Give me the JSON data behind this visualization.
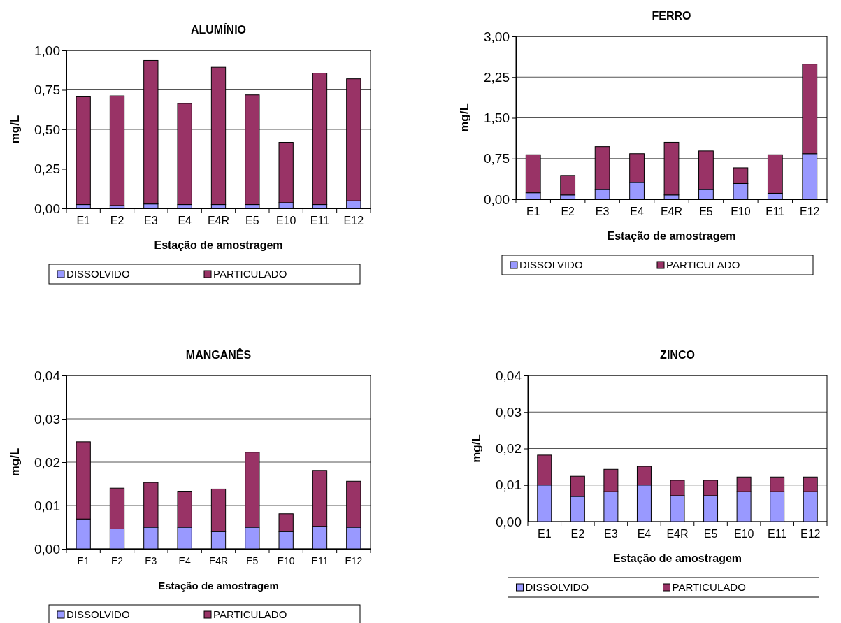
{
  "chart_data": [
    {
      "type": "bar",
      "title": "ALUMÍNIO",
      "xlabel": "Estação de amostragem",
      "ylabel": "mg/L",
      "categories": [
        "E1",
        "E2",
        "E3",
        "E4",
        "E4R",
        "E5",
        "E10",
        "E11",
        "E12"
      ],
      "stacked": true,
      "grid": "y",
      "legend": "bottom",
      "ylim": [
        0,
        1
      ],
      "yticks": [
        {
          "value": 0,
          "label": "0,00"
        },
        {
          "value": 0.25,
          "label": "0,25"
        },
        {
          "value": 0.5,
          "label": "0,50"
        },
        {
          "value": 0.75,
          "label": "0,75"
        },
        {
          "value": 1,
          "label": "1,00"
        }
      ],
      "series": [
        {
          "name": "DISSOLVIDO",
          "color": "#9999ff",
          "values": [
            0.024,
            0.018,
            0.028,
            0.024,
            0.024,
            0.024,
            0.036,
            0.024,
            0.048
          ]
        },
        {
          "name": "PARTICULADO",
          "color": "#993366",
          "values": [
            0.682,
            0.694,
            0.908,
            0.64,
            0.869,
            0.694,
            0.382,
            0.832,
            0.772
          ]
        }
      ]
    },
    {
      "type": "bar",
      "title": "FERRO",
      "xlabel": "Estação de amostragem",
      "ylabel": "mg/L",
      "categories": [
        "E1",
        "E2",
        "E3",
        "E4",
        "E4R",
        "E5",
        "E10",
        "E11",
        "E12"
      ],
      "stacked": true,
      "grid": "y",
      "legend": "bottom",
      "ylim": [
        0,
        3
      ],
      "yticks": [
        {
          "value": 0,
          "label": "0,00"
        },
        {
          "value": 0.75,
          "label": "0,75"
        },
        {
          "value": 1.5,
          "label": "1,50"
        },
        {
          "value": 2.25,
          "label": "2,25"
        },
        {
          "value": 3,
          "label": "3,00"
        }
      ],
      "series": [
        {
          "name": "DISSOLVIDO",
          "color": "#9999ff",
          "values": [
            0.12,
            0.08,
            0.18,
            0.31,
            0.08,
            0.18,
            0.29,
            0.11,
            0.84
          ]
        },
        {
          "name": "PARTICULADO",
          "color": "#993366",
          "values": [
            0.7,
            0.36,
            0.79,
            0.53,
            0.97,
            0.71,
            0.29,
            0.71,
            1.65
          ]
        }
      ]
    },
    {
      "type": "bar",
      "title": "MANGANÊS",
      "xlabel": "Estação de amostragem",
      "ylabel": "mg/L",
      "categories": [
        "E1",
        "E2",
        "E3",
        "E4",
        "E4R",
        "E5",
        "E10",
        "E11",
        "E12"
      ],
      "stacked": true,
      "grid": "y",
      "legend": "bottom",
      "ylim": [
        0,
        0.04
      ],
      "yticks": [
        {
          "value": 0,
          "label": "0,00"
        },
        {
          "value": 0.01,
          "label": "0,01"
        },
        {
          "value": 0.02,
          "label": "0,02"
        },
        {
          "value": 0.03,
          "label": "0,03"
        },
        {
          "value": 0.04,
          "label": "0,04"
        }
      ],
      "series": [
        {
          "name": "DISSOLVIDO",
          "color": "#9999ff",
          "values": [
            0.0069,
            0.0046,
            0.005,
            0.005,
            0.004,
            0.005,
            0.004,
            0.0052,
            0.005
          ]
        },
        {
          "name": "PARTICULADO",
          "color": "#993366",
          "values": [
            0.0178,
            0.0094,
            0.0103,
            0.0083,
            0.0098,
            0.0173,
            0.0041,
            0.0129,
            0.0106
          ]
        }
      ]
    },
    {
      "type": "bar",
      "title": "ZINCO",
      "xlabel": "Estação de amostragem",
      "ylabel": "mg/L",
      "categories": [
        "E1",
        "E2",
        "E3",
        "E4",
        "E4R",
        "E5",
        "E10",
        "E11",
        "E12"
      ],
      "stacked": true,
      "grid": "y",
      "legend": "bottom",
      "ylim": [
        0,
        0.04
      ],
      "yticks": [
        {
          "value": 0,
          "label": "0,00"
        },
        {
          "value": 0.01,
          "label": "0,01"
        },
        {
          "value": 0.02,
          "label": "0,02"
        },
        {
          "value": 0.03,
          "label": "0,03"
        },
        {
          "value": 0.04,
          "label": "0,04"
        }
      ],
      "series": [
        {
          "name": "DISSOLVIDO",
          "color": "#9999ff",
          "values": [
            0.01,
            0.0069,
            0.0082,
            0.01,
            0.0071,
            0.0071,
            0.0082,
            0.0082,
            0.0082
          ]
        },
        {
          "name": "PARTICULADO",
          "color": "#993366",
          "values": [
            0.0082,
            0.0055,
            0.0061,
            0.0051,
            0.0042,
            0.0042,
            0.004,
            0.004,
            0.004
          ]
        }
      ]
    }
  ]
}
